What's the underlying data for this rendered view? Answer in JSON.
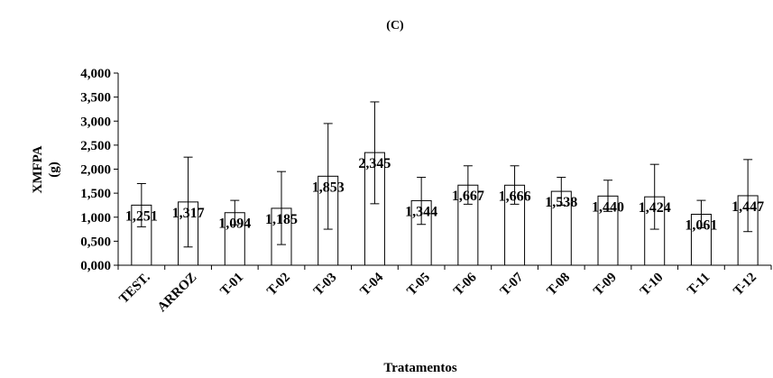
{
  "chart_data": {
    "type": "bar",
    "title": "(C)",
    "xlabel": "Tratamentos",
    "ylabel_line1": "XMFPA",
    "ylabel_line2": "(g)",
    "ylim": [
      0,
      4
    ],
    "yticks": [
      0,
      0.5,
      1,
      1.5,
      2,
      2.5,
      3,
      3.5,
      4
    ],
    "ytick_labels": [
      "0,000",
      "0,500",
      "1,000",
      "1,500",
      "2,000",
      "2,500",
      "3,000",
      "3,500",
      "4,000"
    ],
    "categories": [
      "TEST.",
      "ARROZ",
      "T-01",
      "T-02",
      "T-03",
      "T-04",
      "T-05",
      "T-06",
      "T-07",
      "T-08",
      "T-09",
      "T-10",
      "T-11",
      "T-12"
    ],
    "values": [
      1.251,
      1.317,
      1.094,
      1.185,
      1.853,
      2.345,
      1.344,
      1.667,
      1.666,
      1.538,
      1.44,
      1.424,
      1.061,
      1.447
    ],
    "value_labels": [
      "1,251",
      "1,317",
      "1,094",
      "1,185",
      "1,853",
      "2,345",
      "1,344",
      "1,667",
      "1,666",
      "1,538",
      "1,440",
      "1,424",
      "1,061",
      "1,447"
    ],
    "error_upper": [
      1.7,
      2.25,
      1.35,
      1.95,
      2.95,
      3.4,
      1.83,
      2.07,
      2.07,
      1.83,
      1.77,
      2.1,
      1.35,
      2.2
    ],
    "error_lower": [
      0.8,
      0.38,
      0.84,
      0.43,
      0.75,
      1.28,
      0.85,
      1.27,
      1.27,
      1.25,
      1.12,
      0.75,
      0.78,
      0.7
    ],
    "bar_fill": "#ffffff",
    "bar_stroke": "#000000",
    "grid": false,
    "legend": "none"
  }
}
